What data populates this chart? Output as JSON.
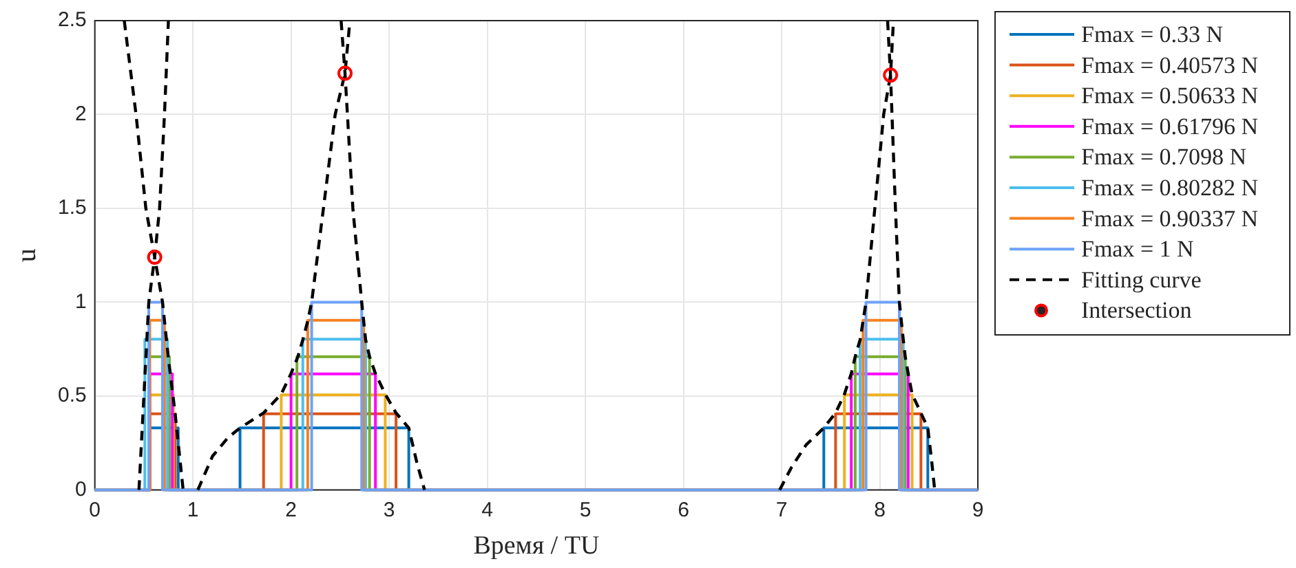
{
  "chart_data": {
    "type": "line",
    "xlabel": "Время / TU",
    "ylabel": "u",
    "xlim": [
      0,
      9
    ],
    "xticks": [
      0,
      1,
      2,
      3,
      4,
      5,
      6,
      7,
      8,
      9
    ],
    "ylim": [
      0,
      2.5
    ],
    "yticks": [
      0,
      0.5,
      1,
      1.5,
      2,
      2.5
    ],
    "grid": true,
    "legend": "right",
    "marker": "none",
    "series": [
      {
        "name": "Fmax = 0.33 N",
        "color": "#0072bd",
        "x": [
          0,
          0.56,
          0.56,
          0.85,
          0.85,
          1.48,
          1.48,
          3.2,
          3.2,
          7.43,
          7.43,
          8.49,
          8.49,
          9
        ],
        "values": [
          0,
          0,
          0.33,
          0.33,
          0,
          0,
          0.33,
          0.33,
          0,
          0,
          0.33,
          0.33,
          0,
          0
        ]
      },
      {
        "name": "Fmax = 0.40573 N",
        "color": "#d95319",
        "x": [
          0,
          0.56,
          0.56,
          0.82,
          0.82,
          1.72,
          1.72,
          3.07,
          3.07,
          7.55,
          7.55,
          8.42,
          8.42,
          9
        ],
        "values": [
          0,
          0,
          0.40573,
          0.40573,
          0,
          0,
          0.40573,
          0.40573,
          0,
          0,
          0.40573,
          0.40573,
          0,
          0
        ]
      },
      {
        "name": "Fmax = 0.50633 N",
        "color": "#edb120",
        "x": [
          0,
          0.56,
          0.56,
          0.8,
          0.8,
          1.9,
          1.9,
          2.96,
          2.96,
          7.64,
          7.64,
          8.33,
          8.33,
          9
        ],
        "values": [
          0,
          0,
          0.50633,
          0.50633,
          0,
          0,
          0.50633,
          0.50633,
          0,
          0,
          0.50633,
          0.50633,
          0,
          0
        ]
      },
      {
        "name": "Fmax = 0.61796 N",
        "color": "#ff00ff",
        "x": [
          0,
          0.56,
          0.56,
          0.79,
          0.79,
          2.0,
          2.0,
          2.86,
          2.86,
          7.71,
          7.71,
          8.29,
          8.29,
          9
        ],
        "values": [
          0,
          0,
          0.61796,
          0.61796,
          0,
          0,
          0.61796,
          0.61796,
          0,
          0,
          0.61796,
          0.61796,
          0,
          0
        ]
      },
      {
        "name": "Fmax = 0.7098 N",
        "color": "#77ac30",
        "x": [
          0,
          0.55,
          0.55,
          0.76,
          0.76,
          2.06,
          2.06,
          2.8,
          2.8,
          7.75,
          7.75,
          8.26,
          8.26,
          9
        ],
        "values": [
          0,
          0,
          0.7098,
          0.7098,
          0,
          0,
          0.7098,
          0.7098,
          0,
          0,
          0.7098,
          0.7098,
          0,
          0
        ]
      },
      {
        "name": "Fmax = 0.80282 N",
        "color": "#4dbeee",
        "x": [
          0,
          0.51,
          0.51,
          0.74,
          0.74,
          2.12,
          2.12,
          2.76,
          2.76,
          7.8,
          7.8,
          8.24,
          8.24,
          9
        ],
        "values": [
          0,
          0,
          0.80282,
          0.80282,
          0,
          0,
          0.80282,
          0.80282,
          0,
          0,
          0.80282,
          0.80282,
          0,
          0
        ]
      },
      {
        "name": "Fmax = 0.90337 N",
        "color": "#f5821f",
        "x": [
          0,
          0.56,
          0.56,
          0.71,
          0.71,
          2.17,
          2.17,
          2.74,
          2.74,
          7.83,
          7.83,
          8.22,
          8.22,
          9
        ],
        "values": [
          0,
          0,
          0.90337,
          0.90337,
          0,
          0,
          0.90337,
          0.90337,
          0,
          0,
          0.90337,
          0.90337,
          0,
          0
        ]
      },
      {
        "name": "Fmax = 1 N",
        "color": "#6ea2f5",
        "x": [
          0,
          0.55,
          0.55,
          0.69,
          0.69,
          2.21,
          2.21,
          2.72,
          2.72,
          7.86,
          7.86,
          8.2,
          8.2,
          9
        ],
        "values": [
          0,
          0,
          1,
          1,
          0,
          0,
          1,
          1,
          0,
          0,
          1,
          1,
          0,
          0
        ]
      },
      {
        "name": "Fitting curve",
        "color": "#000000",
        "line_style": "dashed",
        "x": [
          0.3,
          0.42,
          0.52,
          0.61,
          0.69,
          0.75,
          0.82,
          0.9,
          null,
          0.45,
          0.5,
          0.55,
          0.61,
          0.66,
          0.71,
          0.75,
          null,
          1.05,
          1.2,
          1.36,
          1.48,
          1.72,
          1.9,
          2.0,
          2.07,
          2.12,
          2.17,
          2.21,
          2.33,
          2.45,
          2.55,
          2.6,
          null,
          2.51,
          2.55,
          2.63,
          2.72,
          2.74,
          2.76,
          2.8,
          2.86,
          2.96,
          3.07,
          3.2,
          3.28,
          3.36,
          null,
          6.98,
          7.1,
          7.25,
          7.43,
          7.55,
          7.64,
          7.71,
          7.75,
          7.8,
          7.83,
          7.86,
          7.95,
          8.04,
          8.11,
          8.14,
          null,
          8.08,
          8.11,
          8.16,
          8.2,
          8.22,
          8.24,
          8.26,
          8.29,
          8.33,
          8.42,
          8.49,
          8.53,
          8.56
        ],
        "values": [
          2.5,
          2.0,
          1.5,
          1.24,
          1.0,
          0.7,
          0.4,
          0,
          null,
          0,
          0.5,
          1.0,
          1.24,
          1.5,
          2.0,
          2.5,
          null,
          0,
          0.18,
          0.28,
          0.33,
          0.41,
          0.51,
          0.62,
          0.71,
          0.8,
          0.9,
          1.0,
          1.5,
          2.0,
          2.22,
          2.5,
          null,
          2.5,
          2.22,
          1.5,
          1.0,
          0.9,
          0.8,
          0.71,
          0.62,
          0.51,
          0.41,
          0.33,
          0.15,
          0,
          null,
          0,
          0.12,
          0.24,
          0.33,
          0.41,
          0.51,
          0.62,
          0.71,
          0.8,
          0.9,
          1.0,
          1.5,
          2.0,
          2.21,
          2.5,
          null,
          2.5,
          2.21,
          1.5,
          1.0,
          0.9,
          0.8,
          0.71,
          0.62,
          0.51,
          0.41,
          0.33,
          0.15,
          0
        ]
      },
      {
        "name": "Intersection",
        "type": "scatter",
        "marker": "circle",
        "color": "#ff0000",
        "x": [
          0.61,
          2.55,
          8.11
        ],
        "values": [
          1.24,
          2.22,
          2.21
        ]
      }
    ]
  }
}
